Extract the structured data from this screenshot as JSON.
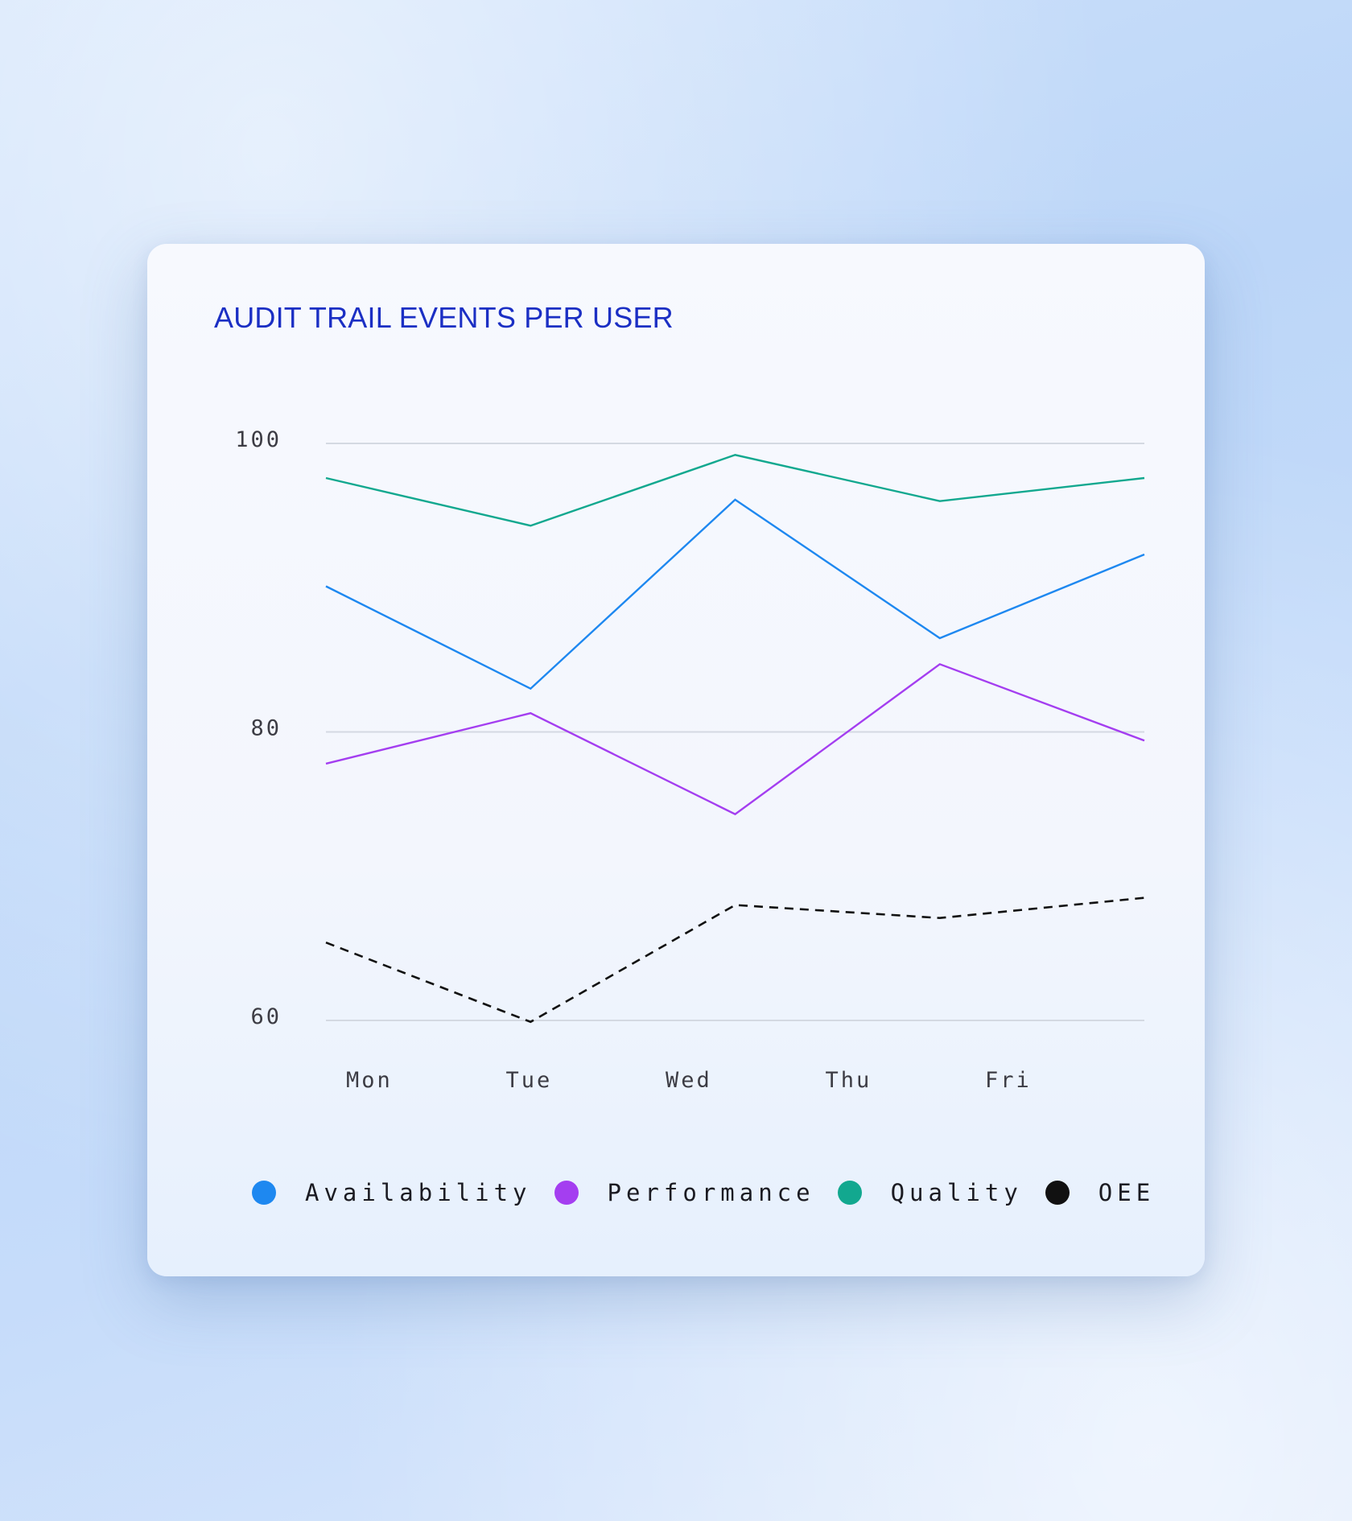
{
  "chart_data": {
    "type": "line",
    "title": "AUDIT TRAIL EVENTS PER USER",
    "categories": [
      "Mon",
      "Tue",
      "Wed",
      "Thu",
      "Fri"
    ],
    "x_tick_labels": [
      "Mon",
      "Tue",
      "Wed",
      "Thu",
      "Fri"
    ],
    "ylim": [
      60,
      100
    ],
    "y_ticks": [
      100,
      80,
      60
    ],
    "grid": true,
    "legend_position": "bottom",
    "xlabel": "",
    "ylabel": "",
    "series": [
      {
        "name": "Availability",
        "color": "#1e88f0",
        "style": "solid",
        "values": [
          90.1,
          83.0,
          96.1,
          86.5,
          92.3
        ]
      },
      {
        "name": "Performance",
        "color": "#a43ef0",
        "style": "solid",
        "values": [
          77.8,
          81.3,
          74.3,
          84.7,
          79.4
        ]
      },
      {
        "name": "Quality",
        "color": "#12a88f",
        "style": "solid",
        "values": [
          97.6,
          94.3,
          99.2,
          96.0,
          97.6
        ]
      },
      {
        "name": "OEE",
        "color": "#111111",
        "style": "dashed",
        "values": [
          65.4,
          59.9,
          68.0,
          67.1,
          68.5
        ]
      }
    ]
  }
}
